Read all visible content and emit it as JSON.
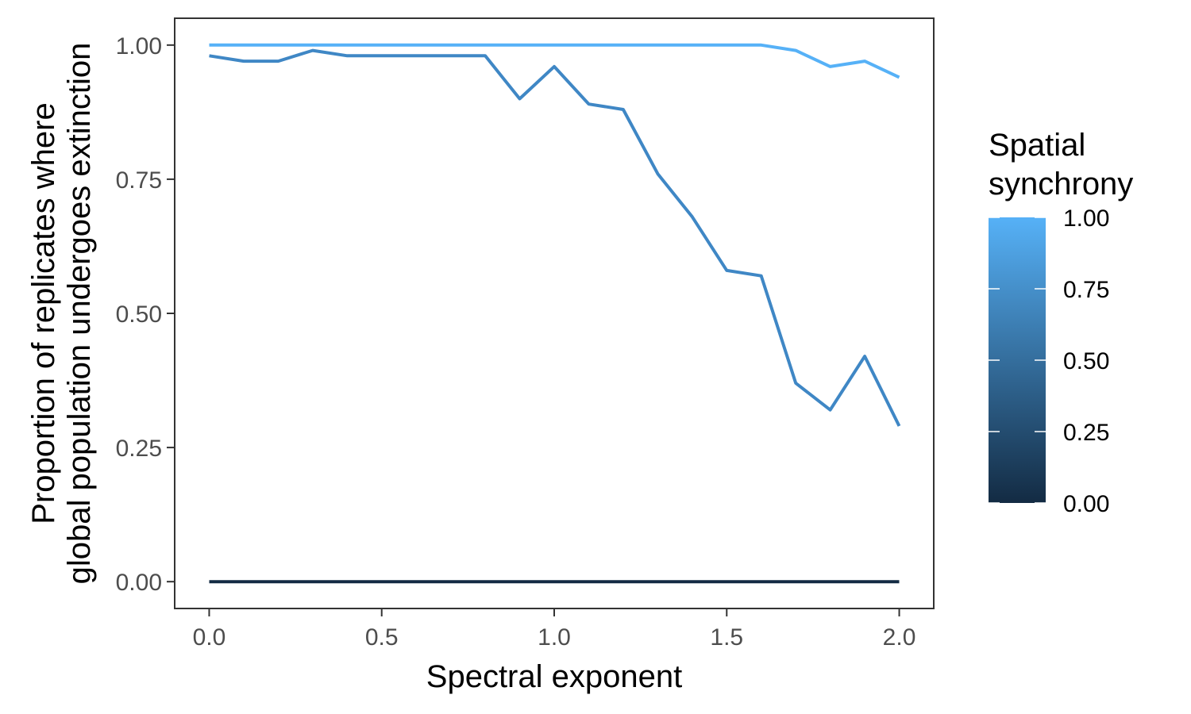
{
  "chart_data": {
    "type": "line",
    "xlabel": "Spectral exponent",
    "ylabel_lines": [
      "Proportion of replicates where",
      "global population undergoes extinction"
    ],
    "xlim": [
      -0.1,
      2.1
    ],
    "ylim": [
      -0.05,
      1.05
    ],
    "x_ticks": [
      0.0,
      0.5,
      1.0,
      1.5,
      2.0
    ],
    "x_tick_labels": [
      "0.0",
      "0.5",
      "1.0",
      "1.5",
      "2.0"
    ],
    "y_ticks": [
      0.0,
      0.25,
      0.5,
      0.75,
      1.0
    ],
    "y_tick_labels": [
      "0.00",
      "0.25",
      "0.50",
      "0.75",
      "1.00"
    ],
    "grid": false,
    "x": [
      0.0,
      0.1,
      0.2,
      0.3,
      0.4,
      0.5,
      0.6,
      0.7,
      0.8,
      0.9,
      1.0,
      1.1,
      1.2,
      1.3,
      1.4,
      1.5,
      1.6,
      1.7,
      1.8,
      1.9,
      2.0
    ],
    "series": [
      {
        "synchrony": 1.0,
        "color": "#56B1F7",
        "values": [
          1.0,
          1.0,
          1.0,
          1.0,
          1.0,
          1.0,
          1.0,
          1.0,
          1.0,
          1.0,
          1.0,
          1.0,
          1.0,
          1.0,
          1.0,
          1.0,
          1.0,
          0.99,
          0.96,
          0.97,
          0.94
        ]
      },
      {
        "synchrony": 0.9,
        "color": "#3F87C5",
        "values": [
          0.98,
          0.97,
          0.97,
          0.99,
          0.98,
          0.98,
          0.98,
          0.98,
          0.98,
          0.9,
          0.96,
          0.89,
          0.88,
          0.76,
          0.68,
          0.58,
          0.57,
          0.37,
          0.32,
          0.42,
          0.29
        ]
      },
      {
        "synchrony": 0.0,
        "color": "#132B43",
        "values": [
          0.0,
          0.0,
          0.0,
          0.0,
          0.0,
          0.0,
          0.0,
          0.0,
          0.0,
          0.0,
          0.0,
          0.0,
          0.0,
          0.0,
          0.0,
          0.0,
          0.0,
          0.0,
          0.0,
          0.0,
          0.0
        ]
      }
    ],
    "legend": {
      "title_lines": [
        "Spatial",
        "synchrony"
      ],
      "placement": "right",
      "type": "colorbar",
      "low_color": "#132B43",
      "high_color": "#56B1F7",
      "range": [
        0.0,
        1.0
      ],
      "breaks": [
        0.0,
        0.25,
        0.5,
        0.75,
        1.0
      ],
      "labels": [
        "0.00",
        "0.25",
        "0.50",
        "0.75",
        "1.00"
      ]
    }
  }
}
